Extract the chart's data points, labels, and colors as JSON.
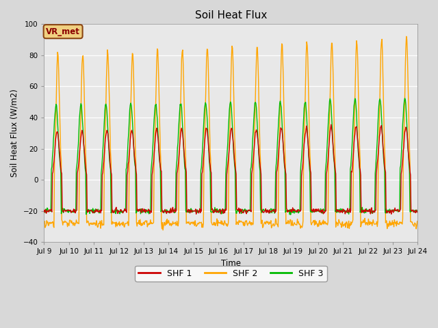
{
  "title": "Soil Heat Flux",
  "ylabel": "Soil Heat Flux (W/m2)",
  "xlabel": "Time",
  "xlim_days": [
    9,
    24
  ],
  "ylim": [
    -40,
    100
  ],
  "yticks": [
    -40,
    -20,
    0,
    20,
    40,
    60,
    80,
    100
  ],
  "bg_color": "#d8d8d8",
  "plot_bg_color": "#e8e8e8",
  "line_colors": {
    "SHF 1": "#cc0000",
    "SHF 2": "#ffa500",
    "SHF 3": "#00bb00"
  },
  "legend_label": "VR_met",
  "legend_box_facecolor": "#f0d080",
  "legend_box_edgecolor": "#8b4513",
  "n_days": 15,
  "hours_per_day": 48
}
